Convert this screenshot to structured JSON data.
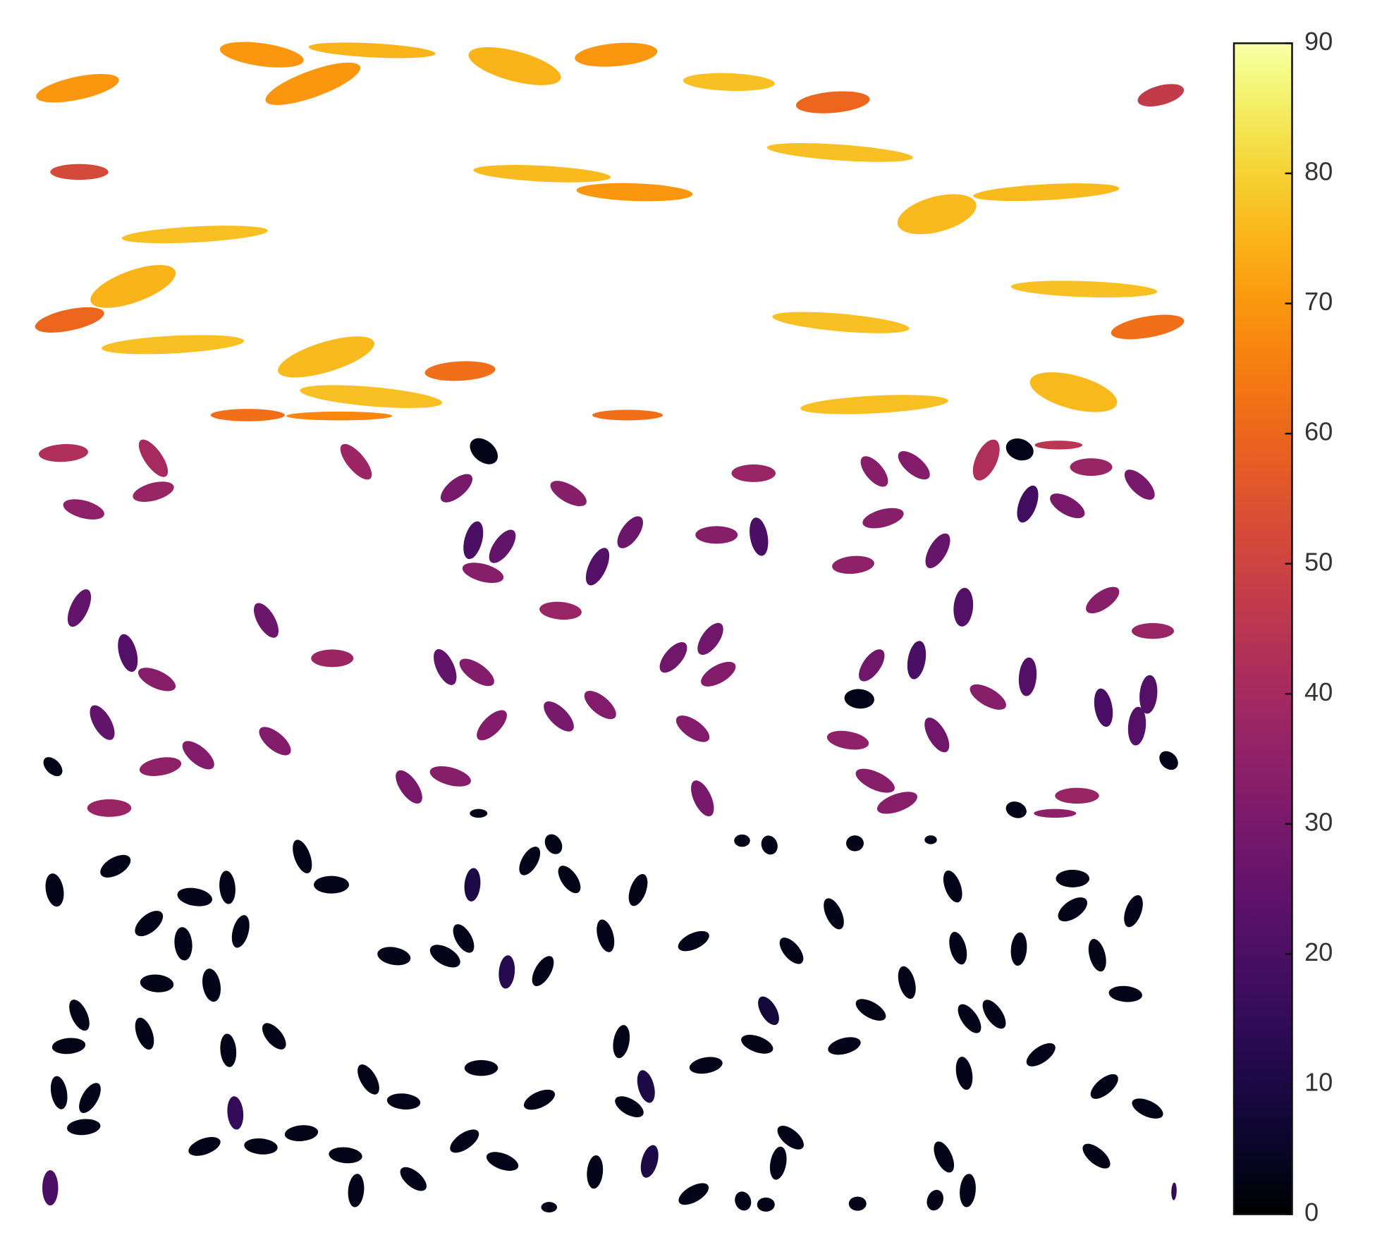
{
  "chart_data": {
    "type": "scatter",
    "colormap": "inferno",
    "clim": [
      0,
      90
    ],
    "cticks": [
      0,
      10,
      20,
      30,
      40,
      50,
      60,
      70,
      80,
      90
    ],
    "values": [
      70,
      70,
      75,
      70,
      75,
      70,
      77,
      60,
      47,
      52,
      76,
      70,
      77,
      76,
      76,
      77,
      75,
      60,
      77,
      76,
      77,
      77,
      62,
      62,
      77,
      76,
      77,
      62,
      67,
      62,
      42,
      40,
      37,
      35,
      38,
      3,
      30,
      33,
      37,
      20,
      25,
      33,
      27,
      22,
      33,
      20,
      33,
      32,
      42,
      3,
      45,
      37,
      30,
      18,
      30,
      33,
      35,
      26,
      25,
      27,
      37,
      22,
      33,
      37,
      22,
      33,
      38,
      25,
      32,
      28,
      28,
      32,
      28,
      20,
      22,
      33,
      20,
      22,
      3,
      25,
      32,
      32,
      30,
      32,
      32,
      35,
      28,
      22,
      3,
      35,
      32,
      30,
      33,
      30,
      33,
      33,
      37,
      37,
      3,
      3,
      3,
      35,
      3,
      3,
      3,
      3,
      3,
      3,
      10,
      3,
      3,
      3,
      3,
      3,
      3,
      3,
      3,
      3,
      3,
      3,
      3,
      3,
      3,
      3,
      3,
      12,
      3,
      3,
      3,
      3,
      3,
      3,
      3,
      3,
      3,
      3,
      3,
      3,
      3,
      3,
      3,
      3,
      3,
      3,
      3,
      3,
      3,
      8,
      3,
      3,
      3,
      3,
      3,
      3,
      3,
      3,
      3,
      3,
      3,
      10,
      3,
      3,
      3,
      3,
      3,
      3,
      15,
      3,
      3,
      3,
      3,
      3,
      3,
      3,
      10,
      3,
      3,
      3,
      3,
      20,
      3,
      3,
      3,
      3,
      3,
      3,
      3,
      3,
      3,
      15
    ]
  }
}
